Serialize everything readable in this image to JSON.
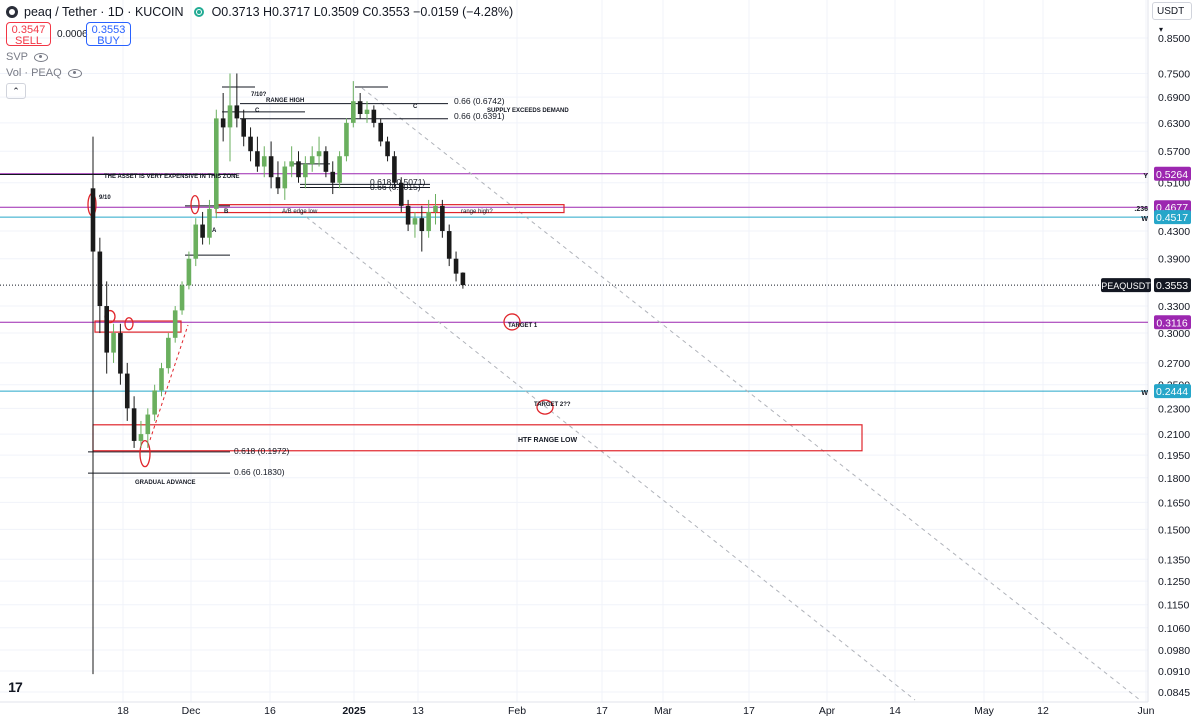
{
  "header": {
    "symbol": "peaq / Tether · 1D · KUCOIN",
    "ohlc": "O0.3713 H0.3717 L0.3509 C0.3553 −0.0159 (−4.28%)",
    "sell_price": "0.3547",
    "sell_label": "SELL",
    "spread": "0.0006",
    "buy_price": "0.3553",
    "buy_label": "BUY",
    "indicators": [
      "SVP",
      "Vol · PEAQ"
    ],
    "currency": "USDT"
  },
  "colors": {
    "up": "#6aaf5e",
    "down": "#1a1a1a",
    "annotation": "#e0252b",
    "purple": "#9c27b0",
    "cyan": "#26a6c9",
    "grid": "#f0f3fa"
  },
  "chart_data": {
    "type": "candlestick",
    "y_scale": "log",
    "ylim": [
      0.0815,
      0.89
    ],
    "y_ticks": [
      "0.8500",
      "0.7500",
      "0.6900",
      "0.6300",
      "0.5700",
      "0.5100",
      "0.4300",
      "0.3900",
      "0.3300",
      "0.3000",
      "0.2700",
      "0.2500",
      "0.2300",
      "0.2100",
      "0.1950",
      "0.1800",
      "0.1650",
      "0.1500",
      "0.1350",
      "0.1250",
      "0.1150",
      "0.1060",
      "0.0980",
      "0.0910",
      "0.0845"
    ],
    "x_ticks": [
      "18",
      "Dec",
      "16",
      "2025",
      "13",
      "Feb",
      "17",
      "Mar",
      "17",
      "Apr",
      "14",
      "May",
      "12",
      "Jun"
    ],
    "last_price_label": "PEAQUSDT",
    "price_tags": [
      {
        "prefix": "Y",
        "value": "0.5264",
        "color": "#9c27b0"
      },
      {
        "prefix": ".236",
        "value": "0.4677",
        "color": "#9c27b0"
      },
      {
        "prefix": "W",
        "value": "0.4517",
        "color": "#26a6c9"
      },
      {
        "prefix": "",
        "value": "0.3553",
        "color": "#131722"
      },
      {
        "prefix": "",
        "value": "0.3116",
        "color": "#9c27b0"
      },
      {
        "prefix": "W",
        "value": "0.2444",
        "color": "#26a6c9"
      }
    ],
    "candles": [
      [
        0.5,
        0.6,
        0.09,
        0.4
      ],
      [
        0.4,
        0.42,
        0.3,
        0.33
      ],
      [
        0.33,
        0.36,
        0.26,
        0.28
      ],
      [
        0.28,
        0.31,
        0.27,
        0.3
      ],
      [
        0.3,
        0.31,
        0.25,
        0.26
      ],
      [
        0.26,
        0.27,
        0.22,
        0.23
      ],
      [
        0.23,
        0.24,
        0.2,
        0.205
      ],
      [
        0.205,
        0.22,
        0.2,
        0.21
      ],
      [
        0.21,
        0.23,
        0.2,
        0.225
      ],
      [
        0.225,
        0.25,
        0.22,
        0.245
      ],
      [
        0.245,
        0.27,
        0.24,
        0.265
      ],
      [
        0.265,
        0.3,
        0.26,
        0.295
      ],
      [
        0.295,
        0.33,
        0.29,
        0.325
      ],
      [
        0.325,
        0.36,
        0.32,
        0.355
      ],
      [
        0.355,
        0.4,
        0.35,
        0.39
      ],
      [
        0.39,
        0.45,
        0.38,
        0.44
      ],
      [
        0.44,
        0.46,
        0.41,
        0.42
      ],
      [
        0.42,
        0.48,
        0.41,
        0.465
      ],
      [
        0.465,
        0.66,
        0.45,
        0.64
      ],
      [
        0.64,
        0.7,
        0.59,
        0.62
      ],
      [
        0.62,
        0.75,
        0.55,
        0.67
      ],
      [
        0.67,
        0.75,
        0.62,
        0.64
      ],
      [
        0.64,
        0.66,
        0.58,
        0.6
      ],
      [
        0.6,
        0.62,
        0.55,
        0.57
      ],
      [
        0.57,
        0.6,
        0.53,
        0.54
      ],
      [
        0.54,
        0.58,
        0.52,
        0.56
      ],
      [
        0.56,
        0.59,
        0.5,
        0.52
      ],
      [
        0.52,
        0.55,
        0.49,
        0.5
      ],
      [
        0.5,
        0.55,
        0.48,
        0.54
      ],
      [
        0.54,
        0.58,
        0.52,
        0.55
      ],
      [
        0.55,
        0.57,
        0.51,
        0.52
      ],
      [
        0.52,
        0.56,
        0.5,
        0.545
      ],
      [
        0.545,
        0.58,
        0.53,
        0.56
      ],
      [
        0.56,
        0.6,
        0.54,
        0.57
      ],
      [
        0.57,
        0.58,
        0.52,
        0.53
      ],
      [
        0.53,
        0.55,
        0.49,
        0.51
      ],
      [
        0.51,
        0.57,
        0.5,
        0.56
      ],
      [
        0.56,
        0.64,
        0.55,
        0.63
      ],
      [
        0.63,
        0.73,
        0.62,
        0.68
      ],
      [
        0.68,
        0.7,
        0.64,
        0.65
      ],
      [
        0.65,
        0.68,
        0.63,
        0.66
      ],
      [
        0.66,
        0.67,
        0.62,
        0.63
      ],
      [
        0.63,
        0.64,
        0.58,
        0.59
      ],
      [
        0.59,
        0.6,
        0.55,
        0.56
      ],
      [
        0.56,
        0.57,
        0.5,
        0.51
      ],
      [
        0.51,
        0.52,
        0.46,
        0.47
      ],
      [
        0.47,
        0.48,
        0.43,
        0.44
      ],
      [
        0.44,
        0.46,
        0.42,
        0.45
      ],
      [
        0.45,
        0.47,
        0.4,
        0.43
      ],
      [
        0.43,
        0.48,
        0.42,
        0.46
      ],
      [
        0.46,
        0.49,
        0.44,
        0.47
      ],
      [
        0.47,
        0.48,
        0.42,
        0.43
      ],
      [
        0.43,
        0.44,
        0.38,
        0.39
      ],
      [
        0.39,
        0.4,
        0.36,
        0.37
      ],
      [
        0.3713,
        0.3717,
        0.3509,
        0.3553
      ]
    ],
    "annotations": [
      {
        "text": "0.66 (0.6742)"
      },
      {
        "text": "0.66 (0.6391)"
      },
      {
        "text": "SUPPLY EXCEEDS DEMAND"
      },
      {
        "text": "RANGE HIGH"
      },
      {
        "text": "7/10?"
      },
      {
        "text": "C"
      },
      {
        "text": "C"
      },
      {
        "text": "THE ASSET IS VERY EXPENSIVE IN THIS ZONE"
      },
      {
        "text": "0.618 (0.5071)"
      },
      {
        "text": "0.66 (0.5015)"
      },
      {
        "text": "9/10"
      },
      {
        "text": "B"
      },
      {
        "text": "A/B edge low"
      },
      {
        "text": "range high?"
      },
      {
        "text": "A"
      },
      {
        "text": "TARGET 1"
      },
      {
        "text": "TARGET 2??"
      },
      {
        "text": "HTF RANGE LOW"
      },
      {
        "text": "0.618 (0.1972)"
      },
      {
        "text": "0.66 (0.1830)"
      },
      {
        "text": "GRADUAL ADVANCE"
      }
    ]
  }
}
